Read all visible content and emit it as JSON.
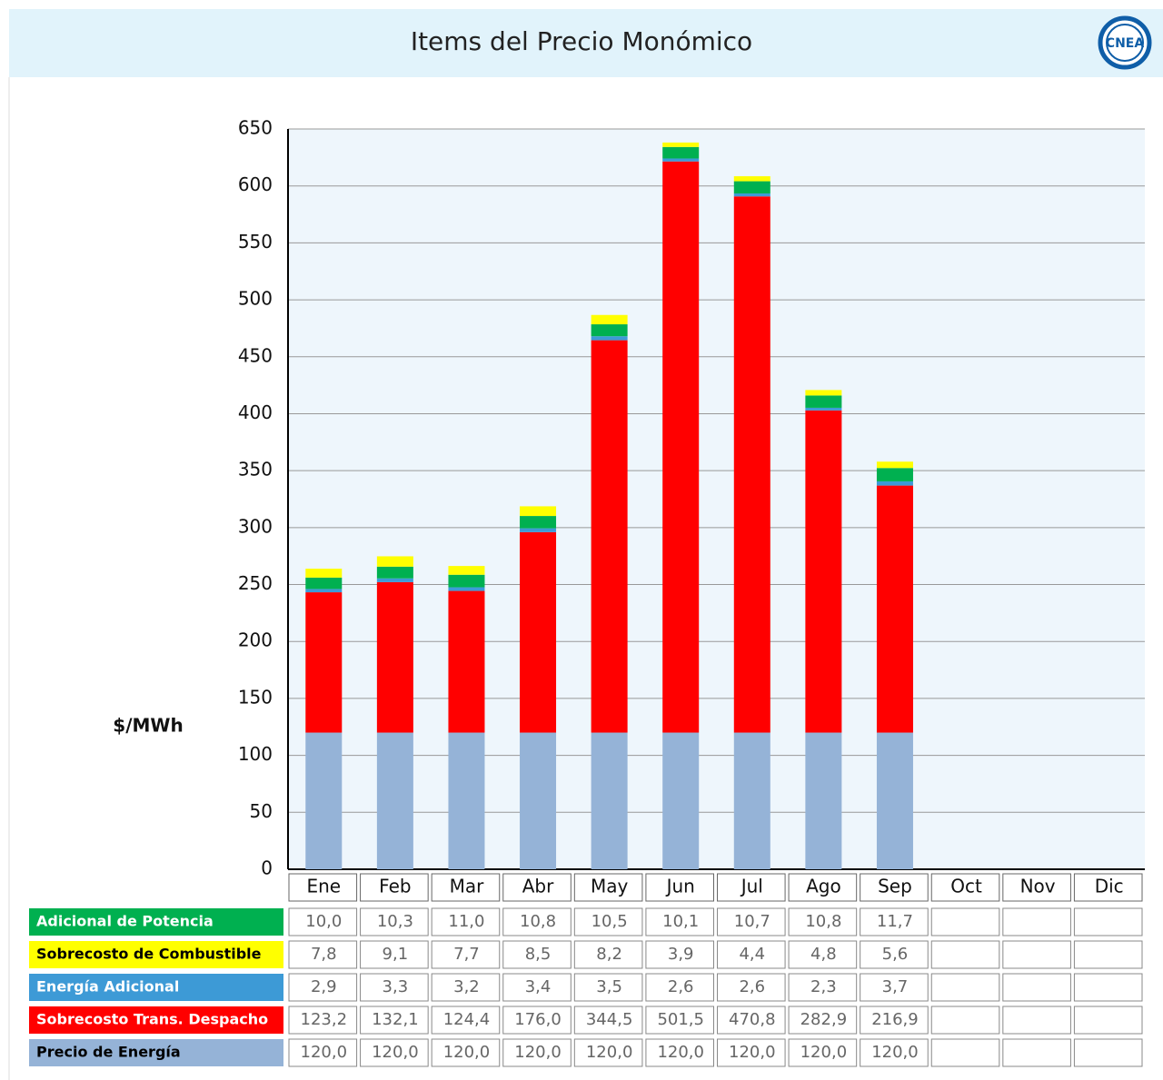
{
  "logo": "CNEA",
  "chart_data": {
    "type": "bar",
    "stacked": true,
    "title": "Items del Precio Monómico",
    "y_label": "$/MWh",
    "categories": [
      "Ene",
      "Feb",
      "Mar",
      "Abr",
      "May",
      "Jun",
      "Jul",
      "Ago",
      "Sep",
      "Oct",
      "Nov",
      "Dic"
    ],
    "ylim": [
      0,
      650
    ],
    "yticks": [
      0,
      50,
      100,
      150,
      200,
      250,
      300,
      350,
      400,
      450,
      500,
      550,
      600,
      650
    ],
    "grid": true,
    "series": [
      {
        "name": "Adicional de Potencia",
        "color": "#00b050",
        "values": [
          10.0,
          10.3,
          11.0,
          10.8,
          10.5,
          10.1,
          10.7,
          10.8,
          11.7,
          null,
          null,
          null
        ],
        "value_labels": [
          "10,0",
          "10,3",
          "11,0",
          "10,8",
          "10,5",
          "10,1",
          "10,7",
          "10,8",
          "11,7",
          null,
          null,
          null
        ]
      },
      {
        "name": "Sobrecosto de Combustible",
        "color": "#ffff00",
        "values": [
          7.8,
          9.1,
          7.7,
          8.5,
          8.2,
          3.9,
          4.4,
          4.8,
          5.6,
          null,
          null,
          null
        ],
        "value_labels": [
          "7,8",
          "9,1",
          "7,7",
          "8,5",
          "8,2",
          "3,9",
          "4,4",
          "4,8",
          "5,6",
          null,
          null,
          null
        ]
      },
      {
        "name": "Energía Adicional",
        "color": "#3d9ad6",
        "values": [
          2.9,
          3.3,
          3.2,
          3.4,
          3.5,
          2.6,
          2.6,
          2.3,
          3.7,
          null,
          null,
          null
        ],
        "value_labels": [
          "2,9",
          "3,3",
          "3,2",
          "3,4",
          "3,5",
          "2,6",
          "2,6",
          "2,3",
          "3,7",
          null,
          null,
          null
        ]
      },
      {
        "name": "Sobrecosto Trans. Despacho",
        "color": "#ff0000",
        "values": [
          123.2,
          132.1,
          124.4,
          176.0,
          344.5,
          501.5,
          470.8,
          282.9,
          216.9,
          null,
          null,
          null
        ],
        "value_labels": [
          "123,2",
          "132,1",
          "124,4",
          "176,0",
          "344,5",
          "501,5",
          "470,8",
          "282,9",
          "216,9",
          null,
          null,
          null
        ]
      },
      {
        "name": "Precio de Energía",
        "color": "#95b3d7",
        "values": [
          120.0,
          120.0,
          120.0,
          120.0,
          120.0,
          120.0,
          120.0,
          120.0,
          120.0,
          null,
          null,
          null
        ],
        "value_labels": [
          "120,0",
          "120,0",
          "120,0",
          "120,0",
          "120,0",
          "120,0",
          "120,0",
          "120,0",
          "120,0",
          null,
          null,
          null
        ]
      }
    ]
  }
}
